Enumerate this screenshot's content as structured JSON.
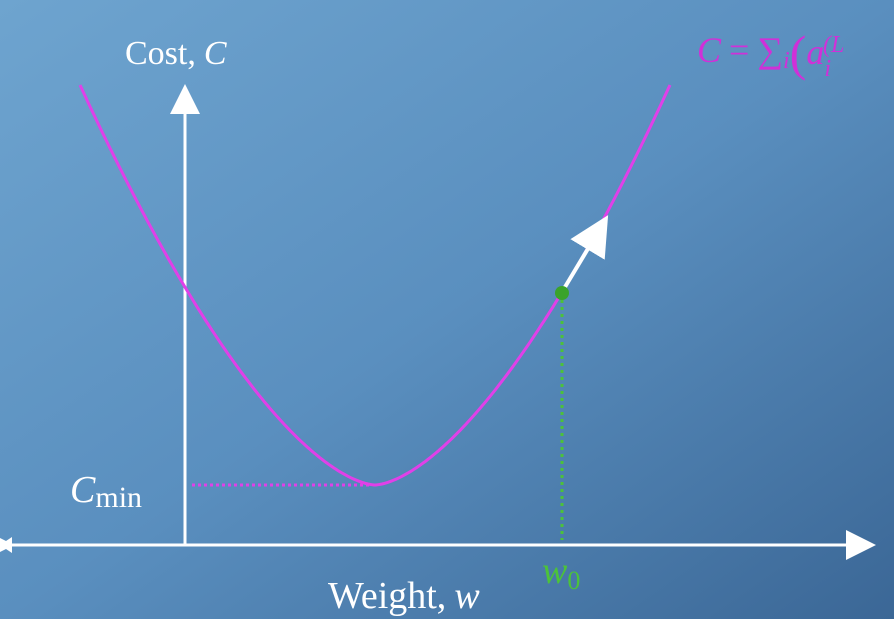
{
  "axis_labels": {
    "y": {
      "word": "Cost,",
      "symbol": "C"
    },
    "x": {
      "word": "Weight,",
      "symbol": "w"
    }
  },
  "markers": {
    "c_min": {
      "symbol": "C",
      "subscript": "min"
    },
    "w_0": {
      "symbol": "w",
      "subscript": "0"
    }
  },
  "formula": {
    "lhs": "C",
    "equals": "=",
    "sum": "∑",
    "sum_index": "i",
    "paren": "(",
    "term": "a",
    "term_sub": "i",
    "term_sup": "(L"
  }
}
